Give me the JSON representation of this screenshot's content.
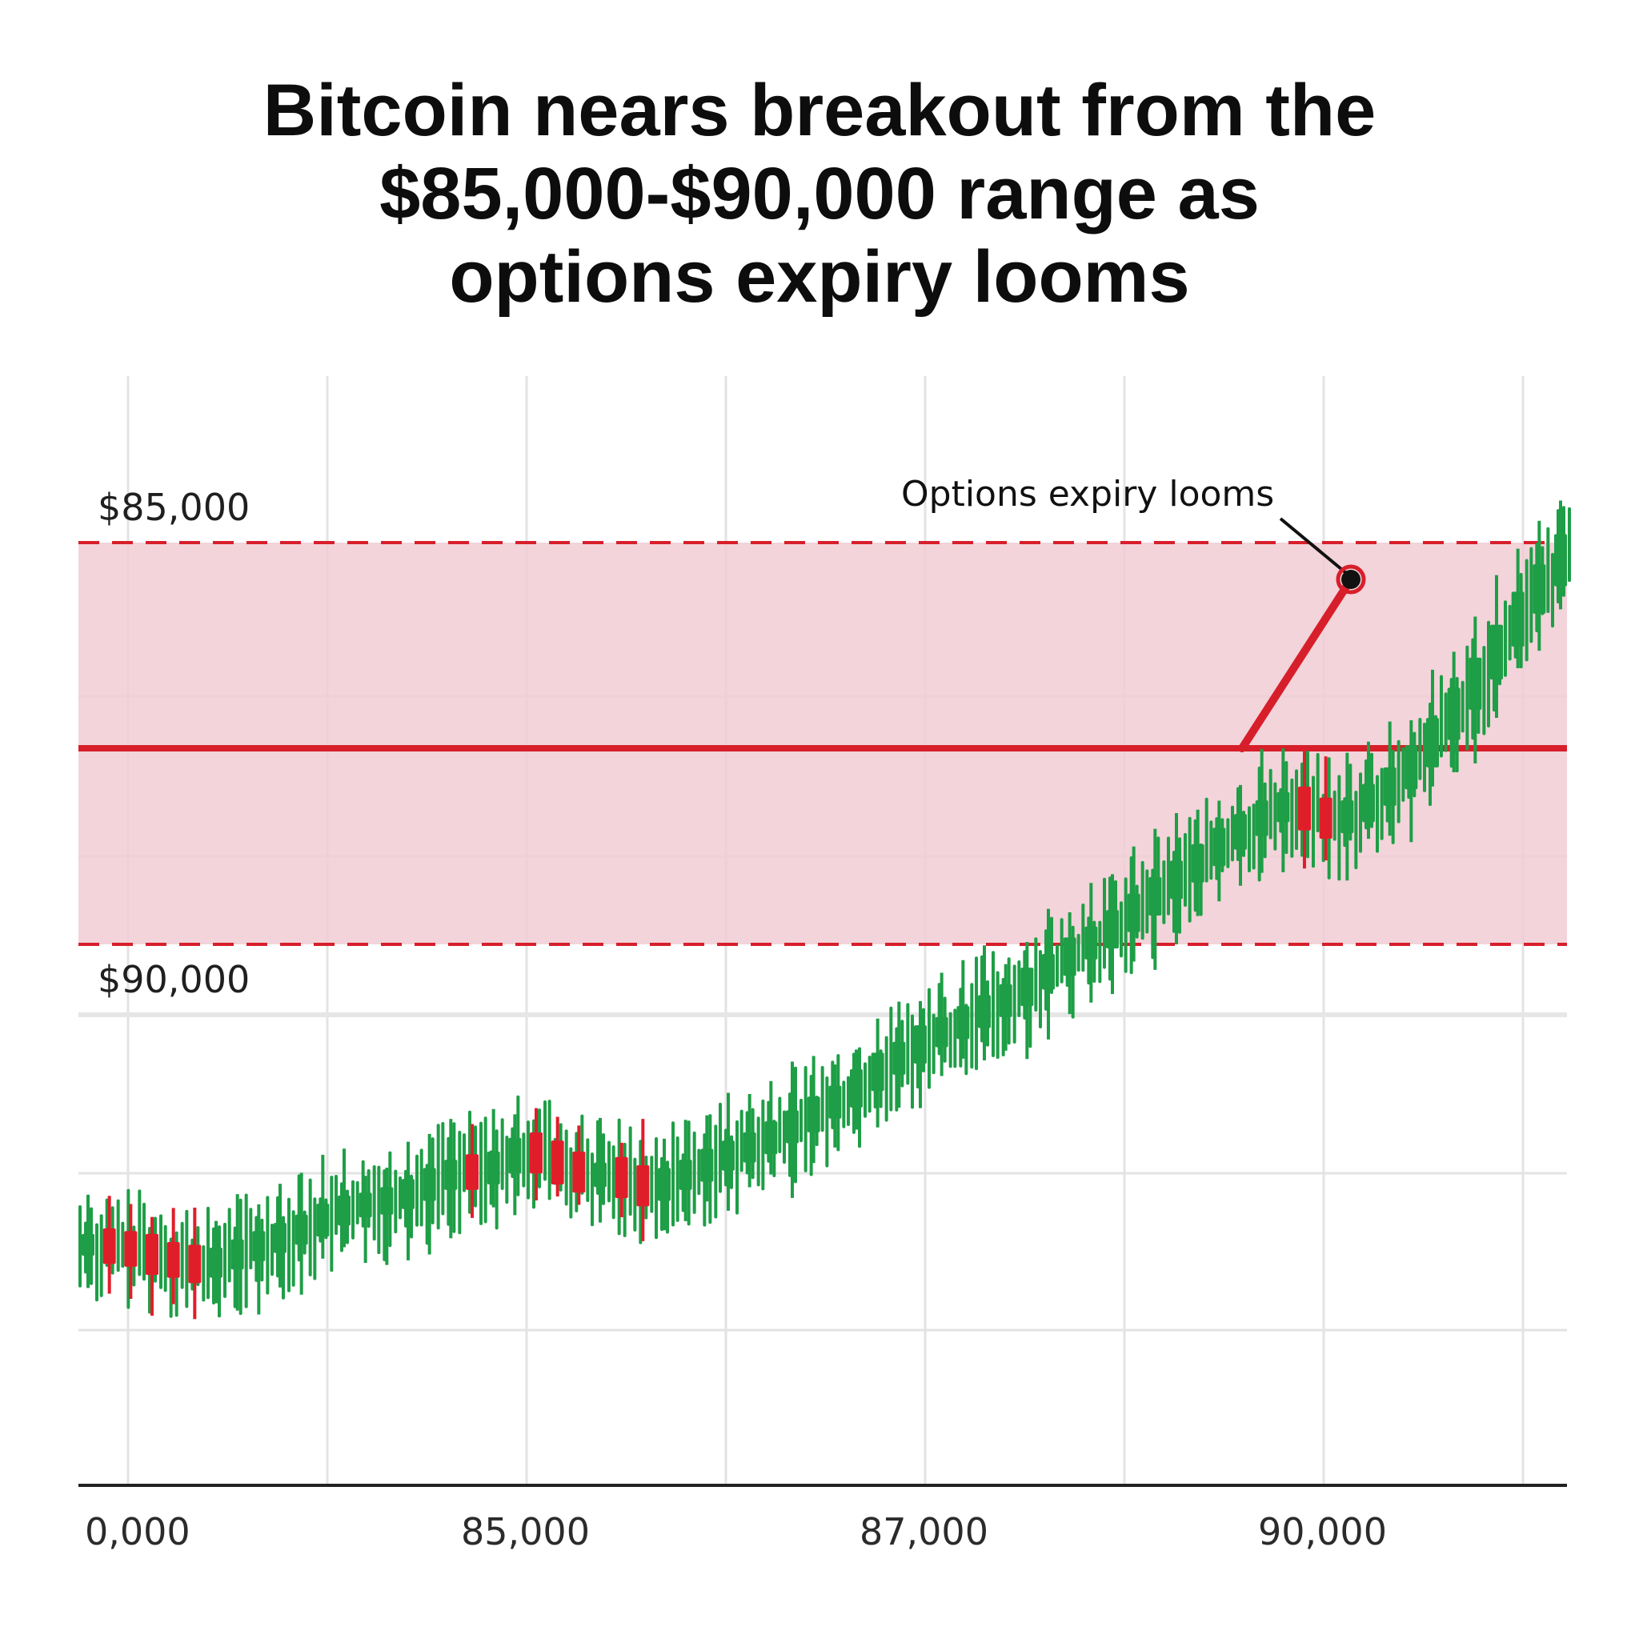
{
  "chart_data": {
    "type": "candlestick",
    "title_lines": [
      "Bitcoin nears breakout from the",
      "$85,000-$90,000 range as",
      "options expiry looms"
    ],
    "x_tick_labels": [
      "0,000",
      "85,000",
      "87,000",
      "90,000"
    ],
    "range": {
      "upper_label": "$85,000",
      "lower_label": "$90,000",
      "style": "shaded band with dashed red borders"
    },
    "annotation": {
      "text": "Options expiry looms"
    },
    "grid": true,
    "colors": {
      "up": "#1e9e46",
      "down": "#e01e2a",
      "band_fill": "#f0cdd3",
      "range_line": "#d71f2b",
      "grid": "#e3e3e3",
      "axis": "#222222"
    },
    "series": [
      {
        "values": [
          48,
          47,
          46,
          43,
          42,
          40,
          43,
          46,
          49,
          52,
          55,
          59,
          62,
          63,
          65,
          68,
          72,
          75,
          74,
          78,
          83,
          80,
          76,
          73,
          74,
          71,
          68,
          72,
          75,
          79,
          82,
          85,
          89,
          93,
          98,
          102,
          108,
          114,
          118,
          124,
          127,
          131,
          135,
          139,
          145,
          150,
          156,
          160,
          166,
          172,
          178,
          184,
          190,
          196,
          201,
          206,
          209,
          205,
          202,
          206,
          212,
          218,
          226,
          236,
          247,
          258,
          270,
          282,
          292,
          303
        ]
      }
    ]
  }
}
